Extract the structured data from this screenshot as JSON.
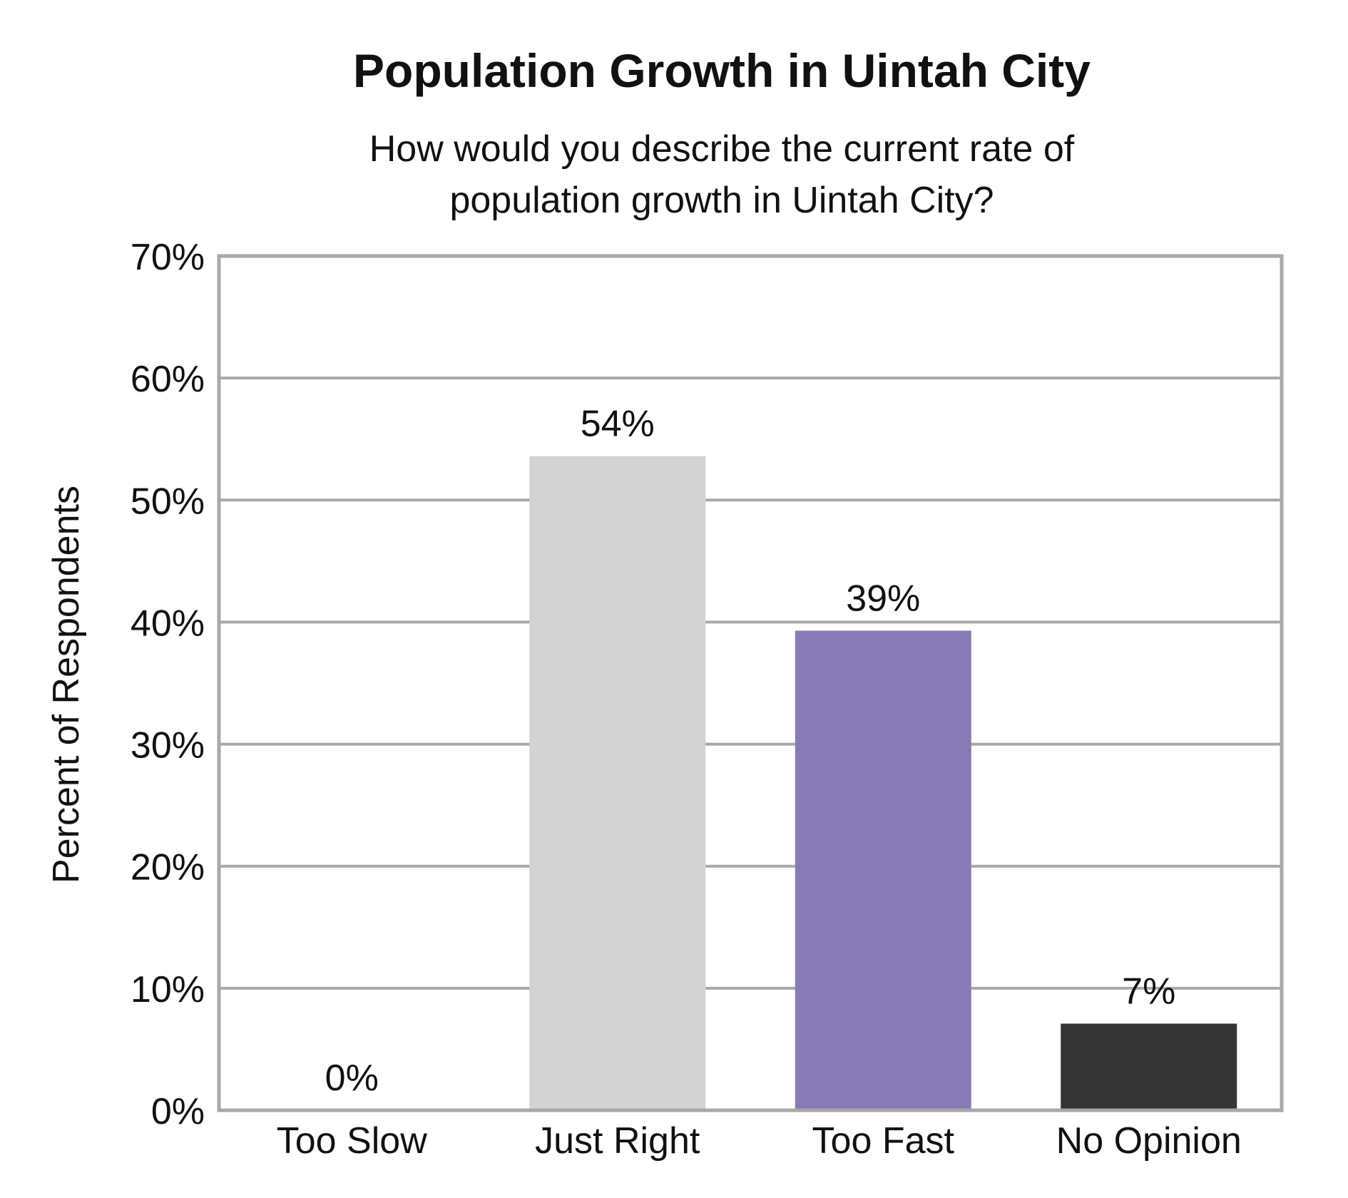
{
  "chart_data": {
    "type": "bar",
    "title": "Population Growth in Uintah City",
    "subtitle_lines": [
      "How would you describe the current rate of",
      "population growth in Uintah City?"
    ],
    "xlabel": "",
    "ylabel": "Percent of Respondents",
    "ylim": [
      0,
      70
    ],
    "yticks": [
      0,
      10,
      20,
      30,
      40,
      50,
      60,
      70
    ],
    "ytick_labels": [
      "0%",
      "10%",
      "20%",
      "30%",
      "40%",
      "50%",
      "60%",
      "70%"
    ],
    "grid": true,
    "categories": [
      "Too Slow",
      "Just Right",
      "Too Fast",
      "No Opinion"
    ],
    "values": [
      0,
      53.6,
      39.3,
      7.1
    ],
    "value_labels": [
      "0%",
      "54%",
      "39%",
      "7%"
    ],
    "colors": [
      "#ffffff",
      "#d3d3d3",
      "#887bb5",
      "#353535"
    ],
    "frame_color": "#a8a8a8",
    "grid_color": "#a8a8a8"
  }
}
